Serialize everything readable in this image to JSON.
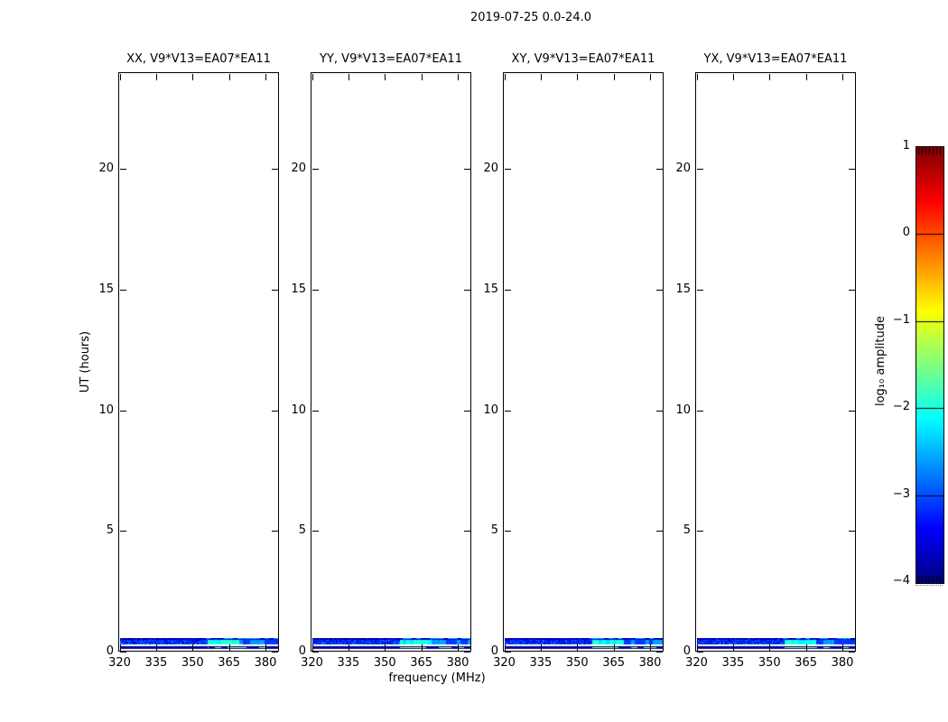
{
  "figure": {
    "title": "2019-07-25 0.0-24.0",
    "background": "#ffffff",
    "axis_color": "#000000"
  },
  "chart_data": {
    "type": "heatmap",
    "title": "2019-07-25 0.0-24.0",
    "xlabel": "frequency (MHz)",
    "ylabel": "UT (hours)",
    "xlim": [
      320,
      385
    ],
    "ylim": [
      0,
      24
    ],
    "xticks": [
      320,
      335,
      350,
      365,
      380
    ],
    "yticks": [
      0,
      5,
      10,
      15,
      20
    ],
    "grid": false,
    "panels": [
      {
        "label": "XX, V9*V13=EA07*EA11"
      },
      {
        "label": "YY, V9*V13=EA07*EA11"
      },
      {
        "label": "XY, V9*V13=EA07*EA11"
      },
      {
        "label": "YX, V9*V13=EA07*EA11"
      }
    ],
    "colorbar": {
      "label": "log₁₀ amplitude",
      "ticks": [
        1,
        0,
        -1,
        -2,
        -3,
        -4
      ],
      "range_log10_amp": [
        -4,
        1
      ],
      "colormap": "jet"
    },
    "data_band": {
      "description": "Visibility data present only near UT 0.0-0.6 h: dark-blue noise (log10 amp ~ -3.5 to -4) across 320-385 MHz, bright cyan RFI (~ -2.1) near 356-369 MHz, blue/cyan blocks 369-385 MHz, and intermittent green segments (~ -1.3) above 356 MHz in the lowest integration; white gap row between integrations.",
      "ut_extent_hours": [
        0.0,
        0.56
      ],
      "rows": [
        {
          "name": "row-upper",
          "ut": [
            0.42,
            0.56
          ],
          "base_log10_amp": -3.7,
          "jitter": 0.45,
          "rfi": {
            "freq_range": [
              355,
              385
            ],
            "log10_amp": -2.5
          }
        },
        {
          "name": "row-mid",
          "ut": [
            0.23,
            0.42
          ],
          "base_log10_amp": -3.25,
          "jitter": 0.55,
          "rfi": {
            "freq_range": [
              356,
              369
            ],
            "log10_amp": -2.1
          },
          "rfi2": {
            "freq_range": [
              369,
              385
            ],
            "log10_amp": -2.6
          }
        },
        {
          "name": "row-gap",
          "ut": [
            0.16,
            0.23
          ]
        },
        {
          "name": "row-lowest",
          "ut": [
            0.04,
            0.16
          ],
          "base_log10_amp": -3.9,
          "jitter": 0.15,
          "rfi": {
            "freq_range": [
              356,
              385
            ],
            "log10_amp": -1.3
          }
        }
      ]
    }
  }
}
